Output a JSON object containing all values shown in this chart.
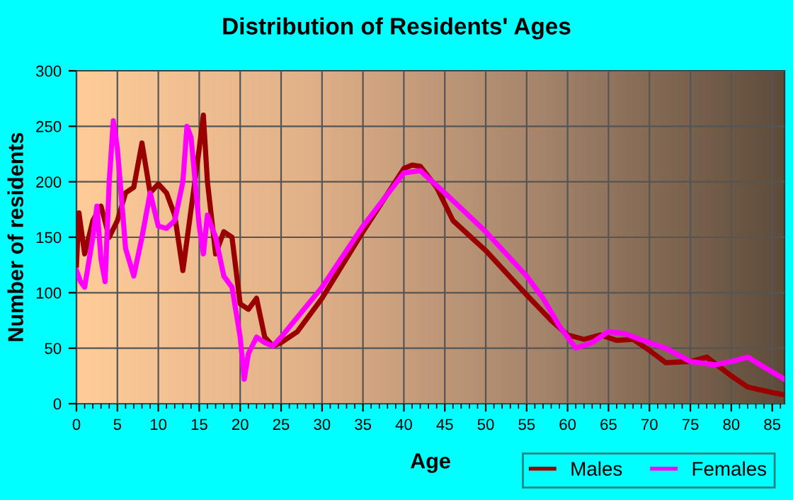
{
  "chart_data": {
    "type": "line",
    "title": "Distribution of Residents' Ages",
    "xlabel": "Age",
    "ylabel": "Number of residents",
    "xlim": [
      0,
      86.5
    ],
    "ylim": [
      0,
      300
    ],
    "xticks": [
      0,
      {
        "value": 1,
        "label": null
      },
      {
        "value": 2,
        "label": null
      },
      {
        "value": 3,
        "label": null
      },
      {
        "value": 4,
        "label": null
      },
      5,
      {
        "value": 6,
        "label": null
      },
      {
        "value": 7,
        "label": null
      },
      {
        "value": 8,
        "label": null
      },
      {
        "value": 9,
        "label": null
      },
      10,
      {
        "value": 11,
        "label": null
      },
      {
        "value": 12,
        "label": null
      },
      {
        "value": 13,
        "label": null
      },
      {
        "value": 14,
        "label": null
      },
      15,
      {
        "value": 16,
        "label": null
      },
      {
        "value": 17,
        "label": null
      },
      {
        "value": 18,
        "label": null
      },
      {
        "value": 19,
        "label": null
      },
      20,
      {
        "value": 21,
        "label": null
      },
      {
        "value": 22,
        "label": null
      },
      {
        "value": 23,
        "label": null
      },
      {
        "value": 24,
        "label": null
      },
      25,
      {
        "value": 26,
        "label": null
      },
      {
        "value": 27,
        "label": null
      },
      {
        "value": 28,
        "label": null
      },
      {
        "value": 29,
        "label": null
      },
      30,
      {
        "value": 31,
        "label": null
      },
      {
        "value": 32,
        "label": null
      },
      {
        "value": 33,
        "label": null
      },
      {
        "value": 34,
        "label": null
      },
      35,
      {
        "value": 36,
        "label": null
      },
      {
        "value": 37,
        "label": null
      },
      {
        "value": 38,
        "label": null
      },
      {
        "value": 39,
        "label": null
      },
      40,
      {
        "value": 41,
        "label": null
      },
      {
        "value": 42,
        "label": null
      },
      {
        "value": 43,
        "label": null
      },
      {
        "value": 44,
        "label": null
      },
      45,
      {
        "value": 46,
        "label": null
      },
      {
        "value": 47,
        "label": null
      },
      {
        "value": 48,
        "label": null
      },
      {
        "value": 49,
        "label": null
      },
      50,
      {
        "value": 51,
        "label": null
      },
      {
        "value": 52,
        "label": null
      },
      {
        "value": 53,
        "label": null
      },
      {
        "value": 54,
        "label": null
      },
      55,
      {
        "value": 56,
        "label": null
      },
      {
        "value": 57,
        "label": null
      },
      {
        "value": 58,
        "label": null
      },
      {
        "value": 59,
        "label": null
      },
      60,
      {
        "value": 61,
        "label": null
      },
      {
        "value": 62,
        "label": null
      },
      {
        "value": 63,
        "label": null
      },
      {
        "value": 64,
        "label": null
      },
      65,
      {
        "value": 66,
        "label": null
      },
      {
        "value": 67,
        "label": null
      },
      {
        "value": 68,
        "label": null
      },
      {
        "value": 69,
        "label": null
      },
      70,
      {
        "value": 71,
        "label": null
      },
      {
        "value": 72,
        "label": null
      },
      {
        "value": 73,
        "label": null
      },
      {
        "value": 74,
        "label": null
      },
      75,
      {
        "value": 76,
        "label": null
      },
      {
        "value": 77,
        "label": null
      },
      {
        "value": 78,
        "label": null
      },
      {
        "value": 79,
        "label": null
      },
      80,
      {
        "value": 81,
        "label": null
      },
      {
        "value": 82,
        "label": null
      },
      {
        "value": 83,
        "label": null
      },
      {
        "value": 84,
        "label": null
      },
      85,
      {
        "value": 86,
        "label": null
      }
    ],
    "yticks": [
      0,
      50,
      100,
      150,
      200,
      250,
      300
    ],
    "grid": true,
    "legend": "bottom right",
    "marker": "none",
    "line_style": "solid",
    "series": [
      {
        "name": "Males",
        "color": "#990000",
        "x": [
          0,
          0.3,
          1,
          2,
          3,
          4,
          5,
          6,
          7,
          8,
          9,
          10,
          11,
          12,
          13,
          14,
          15,
          15.5,
          16,
          17,
          18,
          19,
          20,
          21,
          22,
          23,
          24,
          25,
          27,
          30,
          35,
          40,
          41,
          42,
          44,
          46,
          50,
          55,
          58,
          60,
          62,
          64,
          66,
          68,
          70,
          72,
          75,
          77,
          80,
          82,
          85,
          86.5
        ],
        "values": [
          125,
          172,
          135,
          165,
          178,
          150,
          165,
          190,
          195,
          235,
          190,
          198,
          190,
          170,
          120,
          175,
          230,
          260,
          200,
          135,
          155,
          150,
          90,
          85,
          95,
          60,
          52,
          55,
          65,
          95,
          155,
          212,
          215,
          214,
          195,
          165,
          138,
          98,
          75,
          62,
          58,
          62,
          57,
          58,
          48,
          37,
          38,
          42,
          25,
          15,
          10,
          8
        ]
      },
      {
        "name": "Females",
        "color": "#ff00ff",
        "x": [
          0,
          0.5,
          1,
          2,
          2.5,
          3,
          3.5,
          4,
          4.5,
          5,
          6,
          7,
          8,
          9,
          10,
          11,
          12,
          13,
          13.5,
          14,
          15,
          15.5,
          16,
          17,
          18,
          19,
          20,
          20.5,
          21,
          22,
          23,
          24,
          25,
          30,
          35,
          40,
          42,
          45,
          50,
          55,
          57,
          59,
          61,
          63,
          65,
          67,
          70,
          72,
          75,
          78,
          80,
          82,
          84,
          86.5
        ],
        "values": [
          120,
          110,
          105,
          150,
          178,
          130,
          110,
          200,
          255,
          230,
          140,
          115,
          150,
          190,
          160,
          158,
          165,
          200,
          250,
          240,
          160,
          135,
          170,
          150,
          115,
          105,
          60,
          22,
          45,
          60,
          55,
          52,
          60,
          105,
          160,
          208,
          210,
          190,
          155,
          115,
          95,
          70,
          50,
          55,
          65,
          63,
          55,
          50,
          38,
          35,
          38,
          42,
          33,
          22
        ]
      }
    ]
  }
}
